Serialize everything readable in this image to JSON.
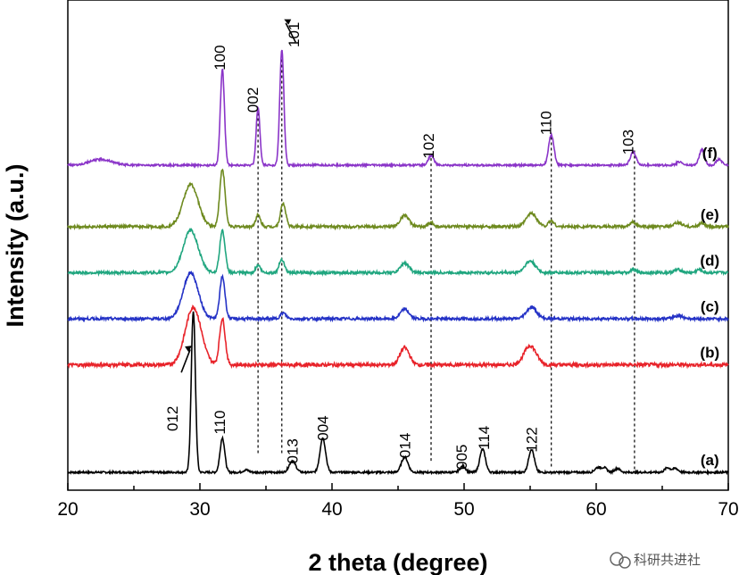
{
  "chart_data": {
    "type": "line",
    "xlabel": "2 theta (degree)",
    "ylabel": "Intensity (a.u.)",
    "xlim": [
      20,
      70
    ],
    "x_ticks": [
      "20",
      "30",
      "40",
      "50",
      "60",
      "70"
    ],
    "y_ticks": [],
    "grid": false,
    "series": [
      {
        "label": "(a)",
        "color": "#000000",
        "baseline": 0,
        "noise": 0.5,
        "label_x": 68.6,
        "peaks": [
          [
            29.5,
            42,
            0.22
          ],
          [
            31.7,
            9,
            0.25
          ],
          [
            33.5,
            0.6,
            0.3
          ],
          [
            37.0,
            3,
            0.35
          ],
          [
            39.3,
            9,
            0.3
          ],
          [
            45.5,
            4,
            0.35
          ],
          [
            49.9,
            1.6,
            0.3
          ],
          [
            51.4,
            6,
            0.3
          ],
          [
            55.1,
            6,
            0.3
          ],
          [
            60.1,
            1.2,
            0.3
          ],
          [
            60.6,
            1.2,
            0.3
          ],
          [
            61.6,
            1.0,
            0.3
          ],
          [
            65.4,
            1.2,
            0.3
          ],
          [
            66.0,
            1.0,
            0.3
          ]
        ]
      },
      {
        "label": "(b)",
        "color": "#e8232a",
        "baseline": 28,
        "noise": 0.9,
        "label_x": 68.6,
        "peaks": [
          [
            29.5,
            15,
            0.85
          ],
          [
            31.7,
            12,
            0.3
          ],
          [
            45.5,
            4.5,
            0.5
          ],
          [
            55.0,
            5,
            0.65
          ]
        ]
      },
      {
        "label": "(c)",
        "color": "#2432c6",
        "baseline": 40,
        "noise": 0.7,
        "label_x": 68.6,
        "peaks": [
          [
            29.3,
            12,
            0.8
          ],
          [
            31.7,
            11,
            0.28
          ],
          [
            36.3,
            1.5,
            0.3
          ],
          [
            45.5,
            2.5,
            0.45
          ],
          [
            55.1,
            3,
            0.55
          ],
          [
            66.2,
            0.8,
            0.5
          ]
        ]
      },
      {
        "label": "(d)",
        "color": "#20a67f",
        "baseline": 52,
        "noise": 0.7,
        "label_x": 68.6,
        "peaks": [
          [
            29.3,
            11,
            0.8
          ],
          [
            31.7,
            11,
            0.28
          ],
          [
            34.4,
            2,
            0.25
          ],
          [
            36.2,
            3.5,
            0.28
          ],
          [
            45.5,
            2.5,
            0.45
          ],
          [
            55.0,
            3,
            0.55
          ],
          [
            62.8,
            0.8,
            0.3
          ],
          [
            66.2,
            0.8,
            0.4
          ],
          [
            67.8,
            0.8,
            0.3
          ]
        ]
      },
      {
        "label": "(e)",
        "color": "#6e8a1f",
        "baseline": 64,
        "noise": 0.7,
        "label_x": 68.6,
        "peaks": [
          [
            29.3,
            11,
            0.8
          ],
          [
            31.7,
            15,
            0.28
          ],
          [
            34.4,
            3,
            0.25
          ],
          [
            36.3,
            6,
            0.28
          ],
          [
            45.5,
            3,
            0.45
          ],
          [
            47.5,
            1.0,
            0.3
          ],
          [
            55.1,
            3.5,
            0.55
          ],
          [
            56.6,
            1.5,
            0.3
          ],
          [
            62.8,
            1.2,
            0.3
          ],
          [
            66.2,
            1.0,
            0.4
          ],
          [
            68.0,
            1.0,
            0.3
          ]
        ]
      },
      {
        "label": "(f)",
        "color": "#8a34c8",
        "baseline": 80,
        "noise": 0.5,
        "label_x": 68.6,
        "peaks": [
          [
            22.5,
            1.5,
            1.2
          ],
          [
            31.7,
            25,
            0.22
          ],
          [
            34.4,
            15,
            0.2
          ],
          [
            36.2,
            30,
            0.22
          ],
          [
            47.5,
            2.5,
            0.3
          ],
          [
            56.6,
            8,
            0.28
          ],
          [
            62.8,
            3.5,
            0.3
          ],
          [
            66.3,
            0.9,
            0.3
          ],
          [
            68.0,
            4,
            0.28
          ],
          [
            69.3,
            1.5,
            0.3
          ]
        ]
      }
    ],
    "peak_labels_a": [
      {
        "text": "012",
        "x": 28.3,
        "y": 14
      },
      {
        "text": "110",
        "x": 31.9,
        "y": 13
      },
      {
        "text": "013",
        "x": 37.4,
        "y": 5.5
      },
      {
        "text": "004",
        "x": 39.7,
        "y": 11.5
      },
      {
        "text": "014",
        "x": 45.9,
        "y": 7
      },
      {
        "text": "005",
        "x": 50.2,
        "y": 4
      },
      {
        "text": "114",
        "x": 51.9,
        "y": 9
      },
      {
        "text": "122",
        "x": 55.5,
        "y": 8.5
      }
    ],
    "peak_labels_f": [
      {
        "text": "100",
        "x": 31.9,
        "y": 108
      },
      {
        "text": "002",
        "x": 34.4,
        "y": 97
      },
      {
        "text": "101",
        "x": 37.5,
        "y": 114
      },
      {
        "text": "102",
        "x": 47.7,
        "y": 85
      },
      {
        "text": "110",
        "x": 56.6,
        "y": 91
      },
      {
        "text": "103",
        "x": 62.8,
        "y": 86
      }
    ],
    "reference_lines": [
      {
        "x": 34.4,
        "y_from": 5,
        "y_to": 95
      },
      {
        "x": 36.2,
        "y_from": 5,
        "y_to": 108
      },
      {
        "x": 47.5,
        "y_from": 3,
        "y_to": 82
      },
      {
        "x": 56.6,
        "y_from": 1.5,
        "y_to": 88
      },
      {
        "x": 62.9,
        "y_from": 0.8,
        "y_to": 84
      }
    ],
    "arrows": [
      {
        "at": 29.4,
        "text_peak": "012"
      },
      {
        "at": 36.3,
        "text_peak": "101"
      }
    ]
  },
  "watermark": "科研共进社"
}
